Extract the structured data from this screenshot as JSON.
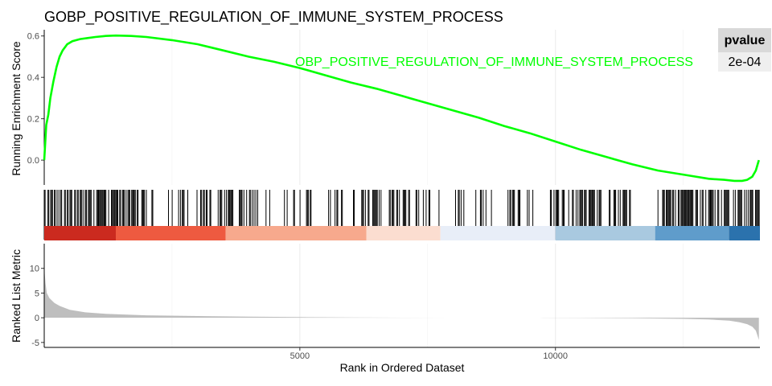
{
  "chart_data": {
    "type": "line",
    "title": "GOBP_POSITIVE_REGULATION_OF_IMMUNE_SYSTEM_PROCESS",
    "xlabel": "Rank in Ordered Dataset",
    "xlim": [
      0,
      14000
    ],
    "x_ticks": [
      5000,
      10000
    ],
    "x_tick_labels": [
      "5000",
      "10000"
    ],
    "enrichment": {
      "ylabel": "Running Enrichment Score",
      "ylim": [
        -0.12,
        0.63
      ],
      "y_ticks": [
        0.0,
        0.2,
        0.4,
        0.6
      ],
      "y_tick_labels": [
        "0.0",
        "0.2",
        "0.4",
        "0.6"
      ],
      "series_label": "OBP_POSITIVE_REGULATION_OF_IMMUNE_SYSTEM_PROCESS",
      "color": "#00ff00",
      "x": [
        0,
        40,
        80,
        120,
        180,
        240,
        300,
        360,
        450,
        550,
        700,
        850,
        1000,
        1200,
        1400,
        1700,
        2000,
        2500,
        3000,
        3500,
        4000,
        4500,
        5000,
        5500,
        6000,
        6500,
        7000,
        7500,
        8000,
        8500,
        9000,
        9500,
        10000,
        10500,
        11000,
        11500,
        12000,
        12500,
        13000,
        13300,
        13500,
        13650,
        13750,
        13850,
        13920,
        13980
      ],
      "y": [
        0.0,
        0.17,
        0.22,
        0.3,
        0.38,
        0.45,
        0.5,
        0.53,
        0.56,
        0.575,
        0.585,
        0.59,
        0.595,
        0.6,
        0.602,
        0.6,
        0.595,
        0.58,
        0.56,
        0.53,
        0.5,
        0.475,
        0.445,
        0.41,
        0.375,
        0.345,
        0.31,
        0.275,
        0.24,
        0.205,
        0.165,
        0.13,
        0.09,
        0.05,
        0.015,
        -0.02,
        -0.05,
        -0.07,
        -0.09,
        -0.095,
        -0.1,
        -0.1,
        -0.095,
        -0.08,
        -0.05,
        -0.0
      ]
    },
    "ranked_list": {
      "ylabel": "Ranked List Metric",
      "ylim": [
        -6,
        15
      ],
      "y_ticks": [
        -5,
        0,
        5,
        10
      ],
      "y_tick_labels": [
        "-5",
        "0",
        "5",
        "10"
      ],
      "color": "#bebebe",
      "x": [
        0,
        10,
        25,
        50,
        100,
        200,
        300,
        500,
        800,
        1200,
        2000,
        3000,
        4000,
        5000,
        6000,
        6500,
        7000,
        8000,
        8900,
        9000,
        9700,
        9750,
        10500,
        11500,
        12500,
        13000,
        13400,
        13600,
        13750,
        13850,
        13920,
        13980
      ],
      "y": [
        14,
        9,
        7,
        5,
        4,
        3,
        2.4,
        1.6,
        1.1,
        0.8,
        0.5,
        0.35,
        0.22,
        0.14,
        0.08,
        0.04,
        0.02,
        0.01,
        0.0,
        0.0,
        0.0,
        -0.01,
        -0.04,
        -0.1,
        -0.22,
        -0.35,
        -0.6,
        -0.9,
        -1.3,
        -1.8,
        -2.6,
        -4.5
      ]
    },
    "hits": {
      "color": "#000000",
      "step": 18,
      "gap_ranges": [
        [
          2200,
          2330
        ],
        [
          3260,
          3390
        ],
        [
          3700,
          3790
        ],
        [
          4180,
          4290
        ],
        [
          4560,
          4650
        ],
        [
          5050,
          5120
        ],
        [
          5260,
          5510
        ],
        [
          5860,
          5930
        ],
        [
          6600,
          6710
        ],
        [
          7160,
          7270
        ],
        [
          7860,
          7970
        ],
        [
          8250,
          8400
        ],
        [
          8800,
          8990
        ],
        [
          9350,
          9440
        ],
        [
          9690,
          9890
        ],
        [
          10900,
          11000
        ],
        [
          11550,
          11680
        ],
        [
          11810,
          11940
        ]
      ],
      "sparse_ranges": [
        [
          2000,
          3600
        ],
        [
          4200,
          6300
        ],
        [
          7300,
          9900
        ],
        [
          11000,
          12000
        ]
      ]
    },
    "color_bar": {
      "segments": [
        {
          "from": 0,
          "to": 1400,
          "color": "#cb2a1f"
        },
        {
          "from": 1400,
          "to": 3550,
          "color": "#ee5a40"
        },
        {
          "from": 3550,
          "to": 6300,
          "color": "#f7a98d"
        },
        {
          "from": 6300,
          "to": 7750,
          "color": "#fbddd0"
        },
        {
          "from": 7750,
          "to": 10000,
          "color": "#e8eef8"
        },
        {
          "from": 10000,
          "to": 11950,
          "color": "#a9c9e0"
        },
        {
          "from": 11950,
          "to": 13400,
          "color": "#5f9ccb"
        },
        {
          "from": 13400,
          "to": 14000,
          "color": "#2b72ad"
        }
      ]
    },
    "pvalue_table": {
      "header": "pvalue",
      "value": "2e-04"
    }
  }
}
